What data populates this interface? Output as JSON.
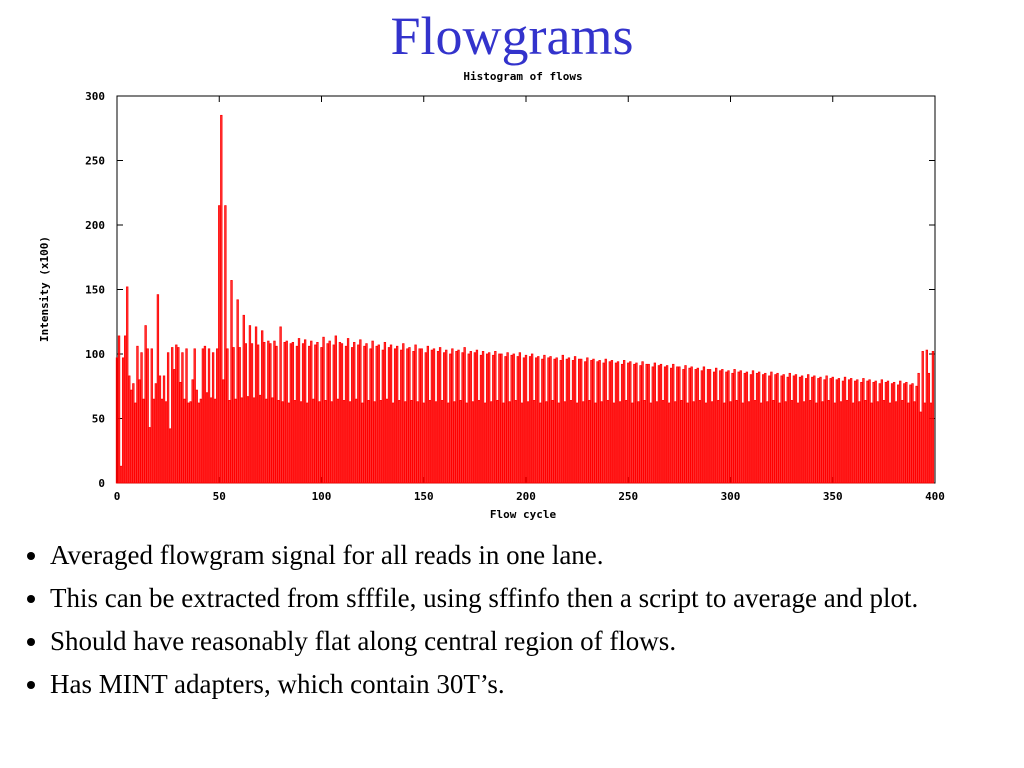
{
  "slide_title": "Flowgrams",
  "chart_data": {
    "type": "bar",
    "title": "Histogram of flows",
    "x_label": "Flow cycle",
    "y_label": "Intensity (x100)",
    "color": "#ff0000",
    "xlim": [
      0,
      400
    ],
    "xticks": [
      0,
      50,
      100,
      150,
      200,
      250,
      300,
      350,
      400
    ],
    "ylim": [
      0,
      300
    ],
    "yticks": [
      0,
      50,
      100,
      150,
      200,
      250,
      300
    ],
    "x": [
      0,
      1,
      2,
      3,
      4,
      5,
      6,
      7,
      8,
      9,
      10,
      11,
      12,
      13,
      14,
      15,
      16,
      17,
      18,
      19,
      20,
      21,
      22,
      23,
      24,
      25,
      26,
      27,
      28,
      29,
      30,
      31,
      32,
      33,
      34,
      35,
      36,
      37,
      38,
      39,
      40,
      41,
      42,
      43,
      44,
      45,
      46,
      47,
      48,
      49,
      50,
      51,
      52,
      53,
      54,
      55,
      56,
      57,
      58,
      59,
      60,
      61,
      62,
      63,
      64,
      65,
      66,
      67,
      68,
      69,
      70,
      71,
      72,
      73,
      74,
      75,
      76,
      77,
      78,
      79,
      80,
      81,
      82,
      83,
      84,
      85,
      86,
      87,
      88,
      89,
      90,
      91,
      92,
      93,
      94,
      95,
      96,
      97,
      98,
      99,
      100,
      101,
      102,
      103,
      104,
      105,
      106,
      107,
      108,
      109,
      110,
      111,
      112,
      113,
      114,
      115,
      116,
      117,
      118,
      119,
      120,
      121,
      122,
      123,
      124,
      125,
      126,
      127,
      128,
      129,
      130,
      131,
      132,
      133,
      134,
      135,
      136,
      137,
      138,
      139,
      140,
      141,
      142,
      143,
      144,
      145,
      146,
      147,
      148,
      149,
      150,
      151,
      152,
      153,
      154,
      155,
      156,
      157,
      158,
      159,
      160,
      161,
      162,
      163,
      164,
      165,
      166,
      167,
      168,
      169,
      170,
      171,
      172,
      173,
      174,
      175,
      176,
      177,
      178,
      179,
      180,
      181,
      182,
      183,
      184,
      185,
      186,
      187,
      188,
      189,
      190,
      191,
      192,
      193,
      194,
      195,
      196,
      197,
      198,
      199,
      200,
      201,
      202,
      203,
      204,
      205,
      206,
      207,
      208,
      209,
      210,
      211,
      212,
      213,
      214,
      215,
      216,
      217,
      218,
      219,
      220,
      221,
      222,
      223,
      224,
      225,
      226,
      227,
      228,
      229,
      230,
      231,
      232,
      233,
      234,
      235,
      236,
      237,
      238,
      239,
      240,
      241,
      242,
      243,
      244,
      245,
      246,
      247,
      248,
      249,
      250,
      251,
      252,
      253,
      254,
      255,
      256,
      257,
      258,
      259,
      260,
      261,
      262,
      263,
      264,
      265,
      266,
      267,
      268,
      269,
      270,
      271,
      272,
      273,
      274,
      275,
      276,
      277,
      278,
      279,
      280,
      281,
      282,
      283,
      284,
      285,
      286,
      287,
      288,
      289,
      290,
      291,
      292,
      293,
      294,
      295,
      296,
      297,
      298,
      299,
      300,
      301,
      302,
      303,
      304,
      305,
      306,
      307,
      308,
      309,
      310,
      311,
      312,
      313,
      314,
      315,
      316,
      317,
      318,
      319,
      320,
      321,
      322,
      323,
      324,
      325,
      326,
      327,
      328,
      329,
      330,
      331,
      332,
      333,
      334,
      335,
      336,
      337,
      338,
      339,
      340,
      341,
      342,
      343,
      344,
      345,
      346,
      347,
      348,
      349,
      350,
      351,
      352,
      353,
      354,
      355,
      356,
      357,
      358,
      359,
      360,
      361,
      362,
      363,
      364,
      365,
      366,
      367,
      368,
      369,
      370,
      371,
      372,
      373,
      374,
      375,
      376,
      377,
      378,
      379,
      380,
      381,
      382,
      383,
      384,
      385,
      386,
      387,
      388,
      389,
      390,
      391,
      392,
      393,
      394,
      395,
      396,
      397,
      398,
      399
    ],
    "values": [
      97,
      114,
      13,
      97,
      114,
      152,
      83,
      72,
      77,
      62,
      106,
      80,
      101,
      65,
      122,
      104,
      43,
      104,
      65,
      77,
      146,
      83,
      65,
      83,
      63,
      101,
      42,
      105,
      88,
      107,
      105,
      78,
      101,
      65,
      104,
      62,
      63,
      80,
      104,
      72,
      62,
      65,
      104,
      106,
      70,
      104,
      66,
      101,
      65,
      104,
      215,
      285,
      80,
      215,
      104,
      64,
      157,
      105,
      65,
      142,
      105,
      66,
      130,
      108,
      67,
      122,
      108,
      66,
      121,
      107,
      68,
      118,
      109,
      65,
      110,
      108,
      66,
      110,
      106,
      64,
      121,
      63,
      109,
      110,
      62,
      108,
      109,
      64,
      106,
      112,
      63,
      108,
      111,
      62,
      106,
      110,
      65,
      107,
      109,
      63,
      105,
      113,
      64,
      108,
      110,
      63,
      107,
      114,
      65,
      109,
      108,
      64,
      106,
      112,
      63,
      105,
      109,
      65,
      107,
      111,
      62,
      106,
      108,
      64,
      104,
      110,
      63,
      106,
      107,
      64,
      103,
      109,
      65,
      105,
      107,
      62,
      104,
      106,
      64,
      103,
      108,
      63,
      104,
      105,
      64,
      102,
      107,
      63,
      104,
      104,
      62,
      101,
      106,
      64,
      103,
      104,
      63,
      102,
      105,
      64,
      101,
      103,
      62,
      100,
      104,
      63,
      102,
      103,
      64,
      101,
      105,
      62,
      100,
      102,
      63,
      101,
      103,
      64,
      99,
      102,
      62,
      100,
      101,
      63,
      99,
      102,
      64,
      100,
      100,
      62,
      98,
      101,
      63,
      99,
      100,
      64,
      98,
      101,
      62,
      97,
      99,
      63,
      98,
      100,
      64,
      97,
      98,
      62,
      96,
      99,
      63,
      97,
      98,
      64,
      96,
      97,
      62,
      95,
      99,
      63,
      96,
      97,
      64,
      95,
      98,
      62,
      96,
      96,
      63,
      94,
      97,
      64,
      95,
      96,
      62,
      94,
      95,
      63,
      93,
      96,
      64,
      94,
      95,
      62,
      93,
      94,
      63,
      92,
      95,
      64,
      93,
      94,
      62,
      92,
      93,
      63,
      91,
      94,
      64,
      92,
      92,
      62,
      90,
      93,
      63,
      91,
      92,
      64,
      90,
      91,
      62,
      89,
      92,
      63,
      90,
      90,
      64,
      88,
      91,
      62,
      89,
      90,
      63,
      88,
      89,
      64,
      87,
      90,
      62,
      88,
      88,
      63,
      86,
      89,
      64,
      87,
      88,
      62,
      86,
      87,
      63,
      85,
      88,
      64,
      86,
      87,
      62,
      85,
      86,
      63,
      84,
      87,
      64,
      85,
      86,
      62,
      84,
      85,
      63,
      83,
      86,
      64,
      84,
      85,
      62,
      83,
      84,
      63,
      82,
      85,
      64,
      83,
      84,
      62,
      82,
      83,
      63,
      81,
      84,
      64,
      82,
      83,
      62,
      81,
      82,
      63,
      80,
      83,
      64,
      81,
      82,
      62,
      80,
      81,
      63,
      79,
      82,
      64,
      80,
      81,
      62,
      79,
      80,
      63,
      78,
      81,
      64,
      79,
      80,
      62,
      78,
      79,
      63,
      77,
      80,
      64,
      78,
      79,
      62,
      77,
      78,
      63,
      76,
      79,
      64,
      77,
      78,
      62,
      76,
      77,
      63,
      75,
      85,
      55,
      102,
      62,
      103,
      85,
      62,
      102
    ]
  },
  "bullets": [
    "Averaged flowgram signal for all reads in one lane.",
    "This can be extracted from sfffile, using sffinfo then a script to average and plot.",
    "Should have reasonably flat along central region of flows.",
    "Has MINT adapters, which contain 30T’s."
  ]
}
